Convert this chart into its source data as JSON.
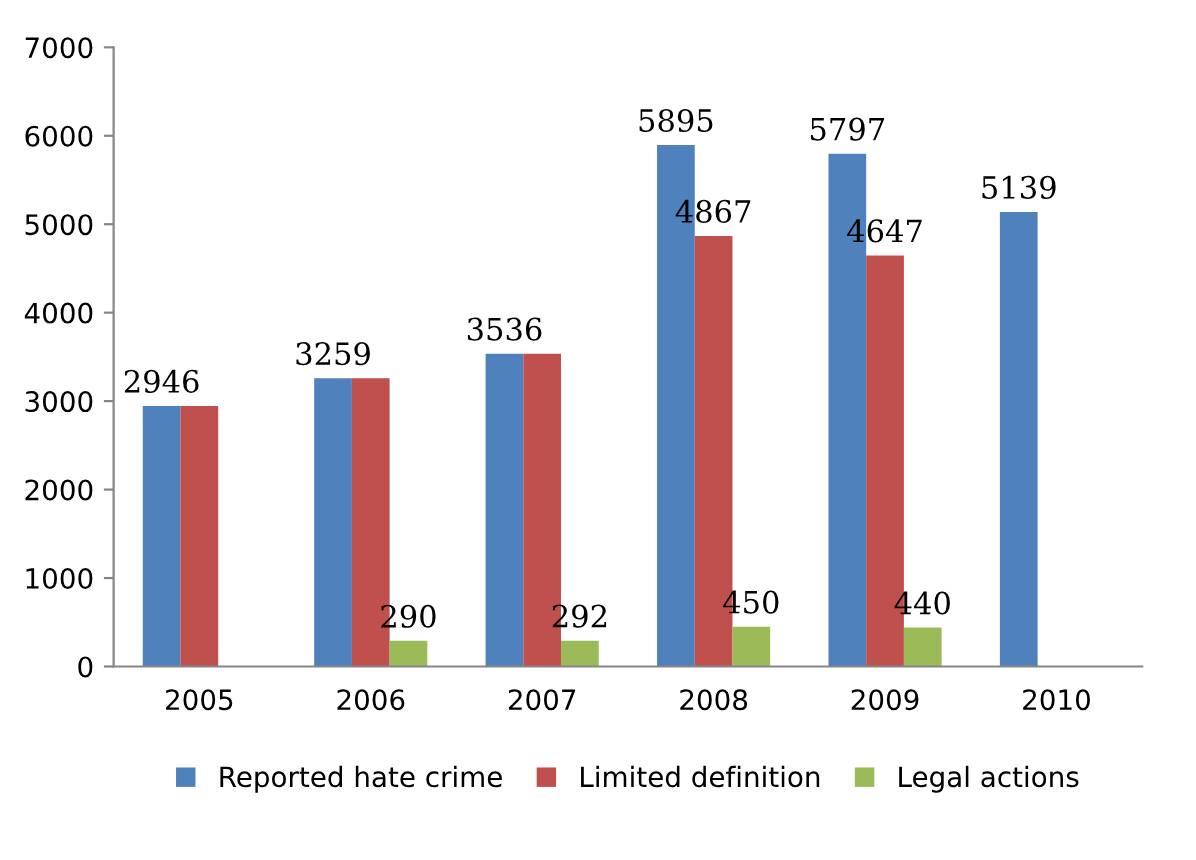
{
  "chart_data": {
    "type": "bar",
    "categories": [
      "2005",
      "2006",
      "2007",
      "2008",
      "2009",
      "2010"
    ],
    "series": [
      {
        "name": "Reported hate crime",
        "color": "#4f81bd",
        "values": [
          2946,
          3259,
          3536,
          5895,
          5797,
          5139
        ],
        "value_labels": [
          "2946",
          "3259",
          "3536",
          "5895",
          "5797",
          "5139"
        ]
      },
      {
        "name": "Limited definition",
        "color": "#c0504d",
        "values": [
          2946,
          3259,
          3536,
          4867,
          4647,
          null
        ],
        "value_labels": [
          null,
          null,
          null,
          "4867",
          "4647",
          null
        ]
      },
      {
        "name": "Legal actions",
        "color": "#9bbb59",
        "values": [
          null,
          290,
          292,
          450,
          440,
          null
        ],
        "value_labels": [
          null,
          "290",
          "292",
          "450",
          "440",
          null
        ]
      }
    ],
    "ylim": [
      0,
      7000
    ],
    "yticks": [
      0,
      1000,
      2000,
      3000,
      4000,
      5000,
      6000,
      7000
    ],
    "grid": false,
    "legend": "bottom"
  }
}
